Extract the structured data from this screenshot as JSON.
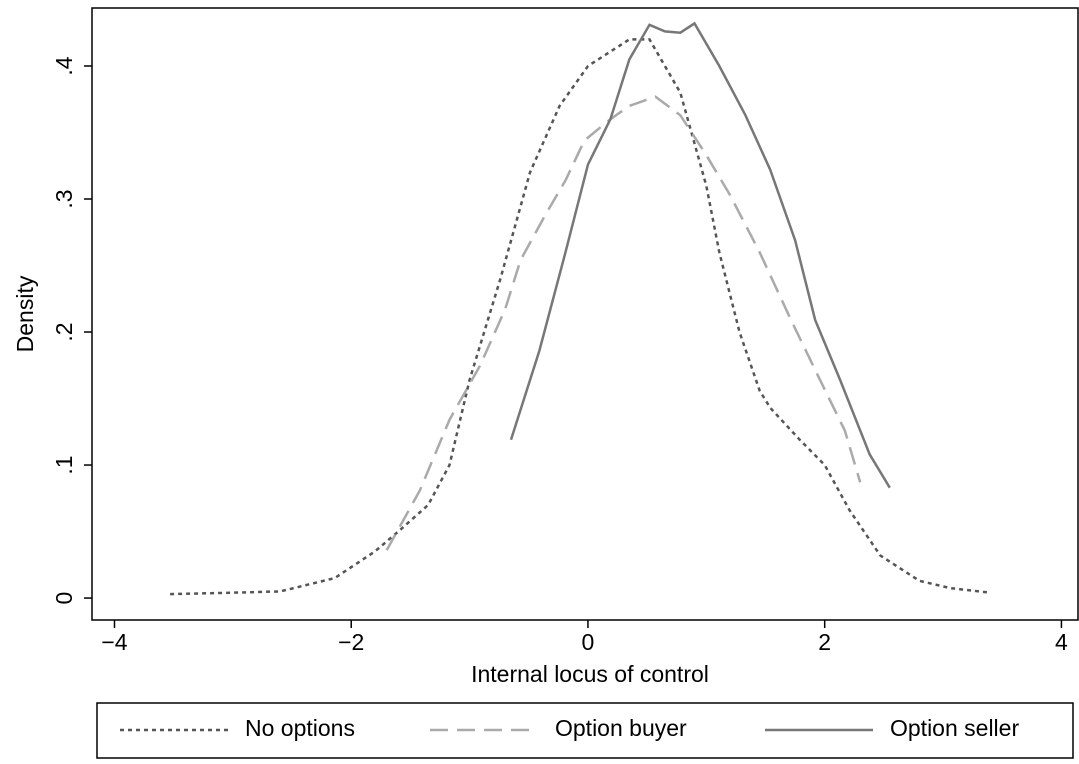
{
  "chart_data": {
    "type": "line",
    "xlabel": "Internal locus of control",
    "ylabel": "Density",
    "xlim": [
      -4.19,
      4.14
    ],
    "ylim": [
      -0.0165,
      0.4436
    ],
    "xticks": [
      {
        "value": -4,
        "label": "−4"
      },
      {
        "value": -2,
        "label": "−2"
      },
      0,
      2,
      4
    ],
    "yticks": [
      0,
      {
        "value": 0.1,
        "label": ".1"
      },
      {
        "value": 0.2,
        "label": ".2"
      },
      {
        "value": 0.3,
        "label": ".3"
      },
      {
        "value": 0.4,
        "label": ".4"
      }
    ],
    "grid": false,
    "legend": "bottom",
    "series": [
      {
        "name": "No options",
        "color": "#555555",
        "dash": "dot",
        "x": [
          -3.53,
          -3.0,
          -2.6,
          -2.14,
          -1.8,
          -1.59,
          -1.35,
          -1.17,
          -1.0,
          -0.74,
          -0.49,
          -0.24,
          0.0,
          0.35,
          0.52,
          0.78,
          1.0,
          1.11,
          1.28,
          1.45,
          1.54,
          1.79,
          2.0,
          2.21,
          2.47,
          2.8,
          3.06,
          3.4
        ],
        "values": [
          0.003,
          0.004,
          0.005,
          0.015,
          0.035,
          0.051,
          0.07,
          0.1,
          0.164,
          0.24,
          0.32,
          0.37,
          0.4,
          0.42,
          0.42,
          0.38,
          0.31,
          0.26,
          0.2,
          0.156,
          0.143,
          0.119,
          0.1,
          0.066,
          0.032,
          0.013,
          0.0075,
          0.004
        ]
      },
      {
        "name": "Option buyer",
        "color": "#aaaaaa",
        "dash": "dash",
        "x": [
          -1.7,
          -1.42,
          -1.17,
          -0.91,
          -0.7,
          -0.57,
          -0.36,
          -0.19,
          -0.03,
          0.19,
          0.35,
          0.57,
          0.78,
          1.0,
          1.2,
          1.45,
          1.71,
          1.96,
          2.17,
          2.3
        ],
        "values": [
          0.036,
          0.081,
          0.134,
          0.175,
          0.217,
          0.254,
          0.288,
          0.314,
          0.344,
          0.36,
          0.37,
          0.377,
          0.363,
          0.333,
          0.303,
          0.26,
          0.21,
          0.164,
          0.126,
          0.087
        ]
      },
      {
        "name": "Option seller",
        "color": "#777777",
        "dash": "solid",
        "x": [
          -0.65,
          -0.41,
          -0.19,
          0.0,
          0.19,
          0.35,
          0.52,
          0.65,
          0.78,
          0.9,
          1.11,
          1.33,
          1.54,
          1.75,
          1.92,
          2.13,
          2.38,
          2.55
        ],
        "values": [
          0.119,
          0.186,
          0.26,
          0.326,
          0.36,
          0.405,
          0.431,
          0.426,
          0.425,
          0.432,
          0.4,
          0.363,
          0.322,
          0.269,
          0.209,
          0.164,
          0.108,
          0.083
        ]
      }
    ]
  }
}
